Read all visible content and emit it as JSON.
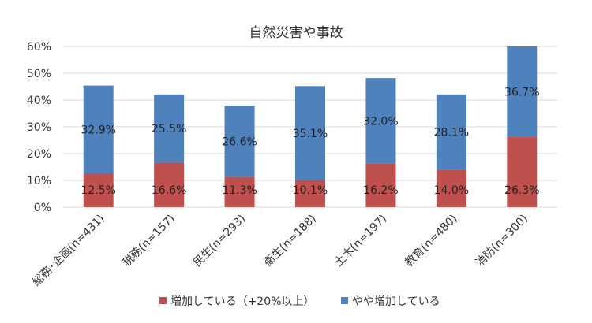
{
  "chart_data": {
    "type": "bar",
    "stacked": true,
    "title": "自然災害や事故",
    "categories": [
      "総務･企画(n=431)",
      "税務(n=157)",
      "民生(n=293)",
      "衛生(n=188)",
      "土木(n=197)",
      "教育(n=480)",
      "消防(n=300)"
    ],
    "series": [
      {
        "name": "増加している（+20%以上）",
        "color": "#c0504d",
        "values": [
          12.5,
          16.6,
          11.3,
          10.1,
          16.2,
          14.0,
          26.3
        ],
        "labels": [
          "12.5%",
          "16.6%",
          "11.3%",
          "10.1%",
          "16.2%",
          "14.0%",
          "26.3%"
        ]
      },
      {
        "name": "やや増加している",
        "color": "#4f81bd",
        "values": [
          32.9,
          25.5,
          26.6,
          35.1,
          32.0,
          28.1,
          36.7
        ],
        "labels": [
          "32.9%",
          "25.5%",
          "26.6%",
          "35.1%",
          "32.0%",
          "28.1%",
          "36.7%"
        ]
      }
    ],
    "y_ticks": [
      "0%",
      "10%",
      "20%",
      "30%",
      "40%",
      "50%",
      "60%"
    ],
    "ylim": [
      0,
      60
    ],
    "grid": true,
    "legend_position": "bottom"
  }
}
